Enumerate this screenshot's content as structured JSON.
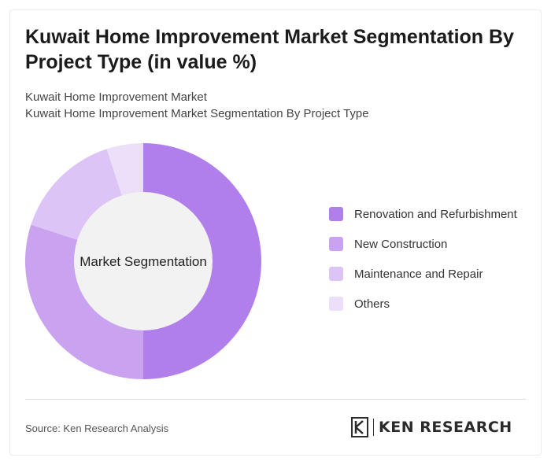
{
  "title": "Kuwait Home Improvement Market Segmentation By Project Type (in value %)",
  "subtitle_lines": [
    "Kuwait Home Improvement Market",
    "Kuwait Home Improvement Market Segmentation By Project Type"
  ],
  "chart_data": {
    "type": "pie",
    "donut": true,
    "center_label": "Market Segmentation",
    "categories": [
      "Renovation and Refurbishment",
      "New Construction",
      "Maintenance and Repair",
      "Others"
    ],
    "values": [
      50,
      30,
      15,
      5
    ],
    "colors": [
      "#b07fec",
      "#c9a2f0",
      "#dcc4f6",
      "#ecdff9"
    ],
    "hole_color": "#f2f2f2",
    "legend_position": "right"
  },
  "footer": {
    "source": "Source: Ken Research Analysis",
    "logo_text": "KEN RESEARCH"
  }
}
